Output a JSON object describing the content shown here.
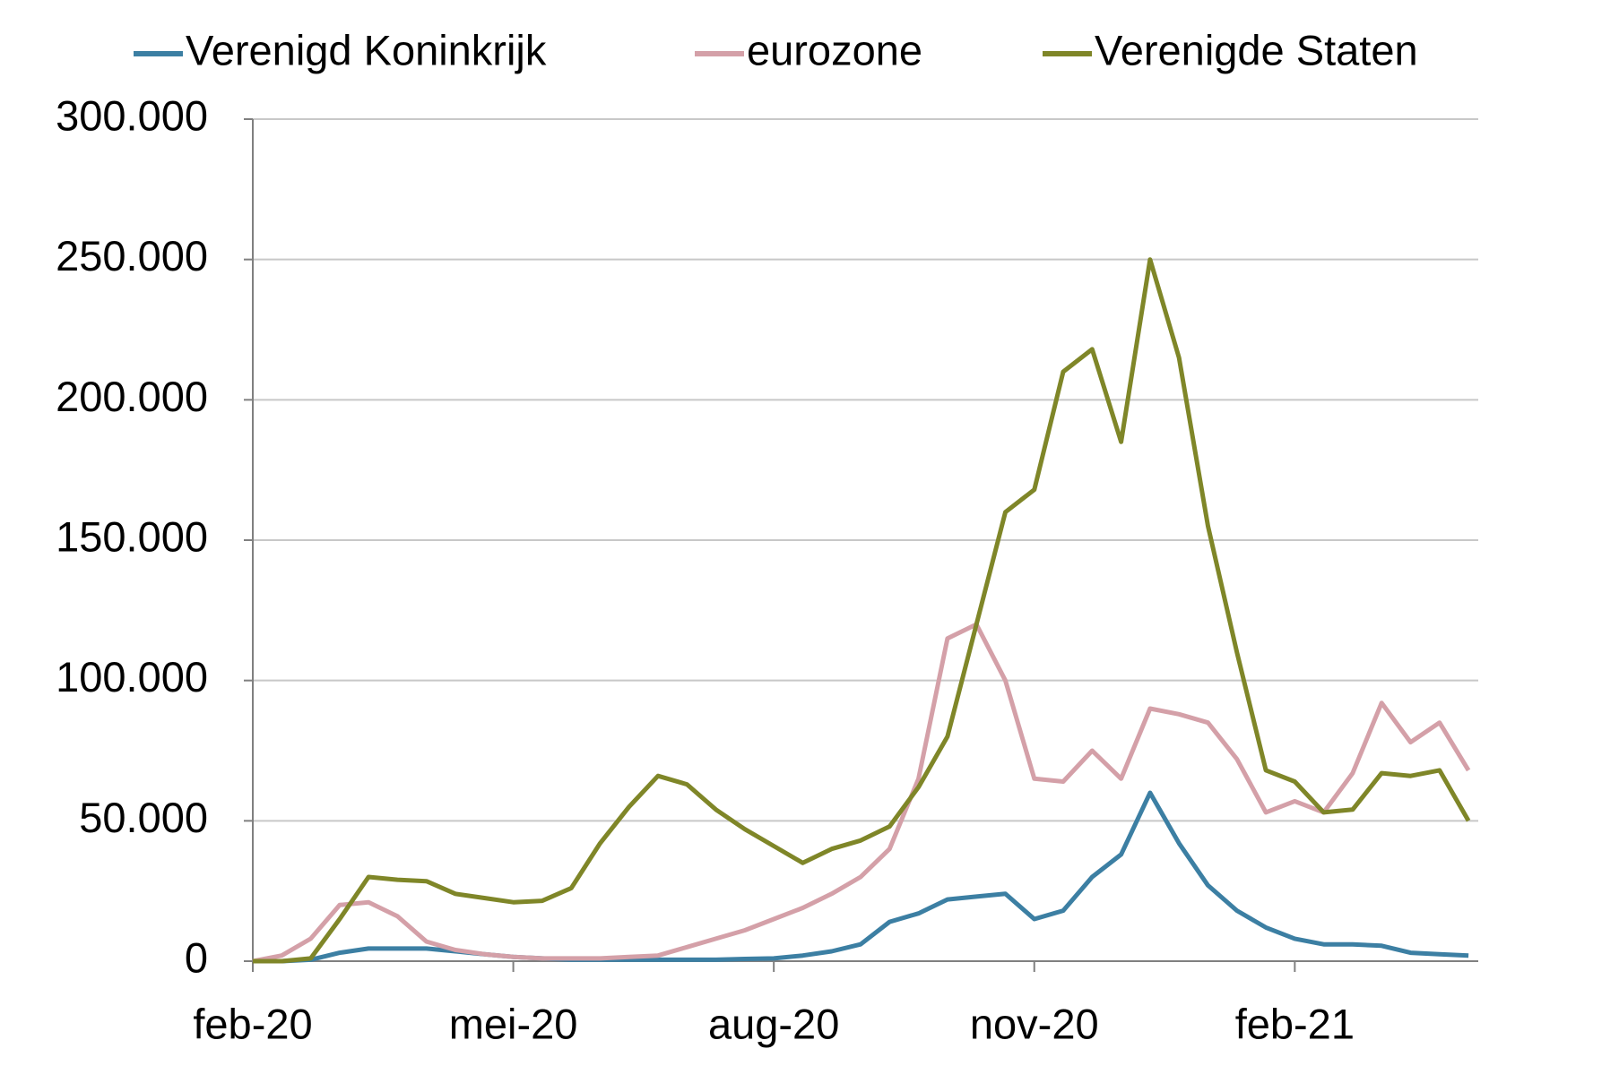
{
  "chart_data": {
    "type": "line",
    "categories": [
      "feb-20",
      null,
      null,
      null,
      null,
      null,
      null,
      null,
      null,
      "mei-20",
      null,
      null,
      null,
      null,
      null,
      null,
      null,
      null,
      "aug-20",
      null,
      null,
      null,
      null,
      null,
      null,
      null,
      null,
      "nov-20",
      null,
      null,
      null,
      null,
      null,
      null,
      null,
      null,
      "feb-21",
      null,
      null,
      null,
      null,
      null,
      null
    ],
    "series": [
      {
        "name": "Verenigd Koninkrijk",
        "color": "#3c7fa3",
        "values": [
          0,
          0,
          500,
          3000,
          4500,
          4500,
          4500,
          3500,
          2500,
          1500,
          1000,
          500,
          500,
          500,
          500,
          500,
          500,
          800,
          1000,
          2000,
          3500,
          6000,
          14000,
          17000,
          22000,
          23000,
          24000,
          15000,
          18000,
          30000,
          38000,
          60000,
          42000,
          27000,
          18000,
          12000,
          8000,
          6000,
          6000,
          5500,
          3000,
          2500,
          2000
        ]
      },
      {
        "name": "eurozone",
        "color": "#d4a0a8",
        "values": [
          0,
          2000,
          8000,
          20000,
          21000,
          16000,
          7000,
          4000,
          2500,
          1500,
          1000,
          1000,
          1000,
          1500,
          2000,
          5000,
          8000,
          11000,
          15000,
          19000,
          24000,
          30000,
          40000,
          65000,
          115000,
          120000,
          100000,
          65000,
          64000,
          75000,
          65000,
          90000,
          88000,
          85000,
          72000,
          53000,
          57000,
          53000,
          67000,
          92000,
          78000,
          85000,
          68000
        ]
      },
      {
        "name": "Verenigde Staten",
        "color": "#7f8628",
        "values": [
          0,
          0,
          1000,
          15000,
          30000,
          29000,
          28500,
          24000,
          22500,
          21000,
          21500,
          26000,
          42000,
          55000,
          66000,
          63000,
          54000,
          47000,
          41000,
          35000,
          40000,
          43000,
          48000,
          62000,
          80000,
          120000,
          160000,
          168000,
          210000,
          218000,
          185000,
          250000,
          215000,
          155000,
          110000,
          68000,
          64000,
          53000,
          54000,
          67000,
          66000,
          68000,
          50000
        ]
      }
    ],
    "ylim": [
      0,
      300000
    ],
    "yticks": [
      0,
      {
        "value": 50000,
        "label": "50.000"
      },
      {
        "value": 100000,
        "label": "100.000"
      },
      {
        "value": 150000,
        "label": "150.000"
      },
      {
        "value": 200000,
        "label": "200.000"
      },
      {
        "value": 250000,
        "label": "250.000"
      },
      {
        "value": 300000,
        "label": "300.000"
      }
    ],
    "grid": true,
    "legend": "top"
  }
}
